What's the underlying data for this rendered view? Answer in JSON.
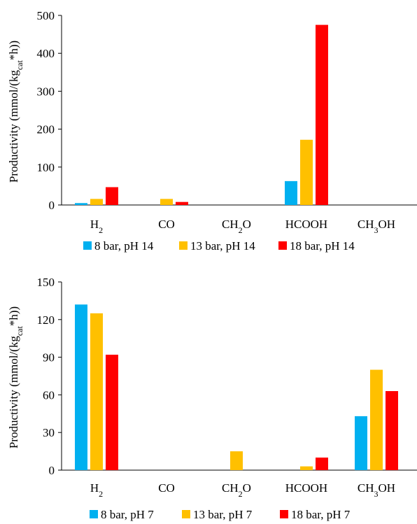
{
  "chart_data": [
    {
      "type": "bar",
      "ylabel": "Productivity (mmol/(kg_cat*h))",
      "ylabel_parts": {
        "main": "Productivity (mmol/(kg",
        "sub": "cat",
        "tail": "*h))"
      },
      "ylim": [
        0,
        500
      ],
      "yticks": [
        "0",
        "100",
        "200",
        "300",
        "400",
        "500"
      ],
      "categories": [
        {
          "base": "H",
          "sub": "2",
          "tail": ""
        },
        {
          "base": "CO",
          "sub": "",
          "tail": ""
        },
        {
          "base": "CH",
          "sub": "2",
          "tail": "O"
        },
        {
          "base": "HCOOH",
          "sub": "",
          "tail": ""
        },
        {
          "base": "CH",
          "sub": "3",
          "tail": "OH"
        }
      ],
      "series": [
        {
          "name": "8 bar, pH 14",
          "color": "#00b0f0",
          "values": [
            5,
            0,
            0,
            63,
            0
          ]
        },
        {
          "name": "13 bar, pH 14",
          "color": "#ffc000",
          "values": [
            16,
            16,
            0,
            172,
            0
          ]
        },
        {
          "name": "18 bar, pH 14",
          "color": "#ff0000",
          "values": [
            47,
            8,
            0,
            475,
            0
          ]
        }
      ],
      "legend": "bottom",
      "grid": false
    },
    {
      "type": "bar",
      "ylabel": "Productivity (mmol/(kg_cat*h))",
      "ylabel_parts": {
        "main": "Productivity (mmol/(kg",
        "sub": "cat",
        "tail": "*h))"
      },
      "ylim": [
        0,
        150
      ],
      "yticks": [
        "0",
        "30",
        "60",
        "90",
        "120",
        "150"
      ],
      "categories": [
        {
          "base": "H",
          "sub": "2",
          "tail": ""
        },
        {
          "base": "CO",
          "sub": "",
          "tail": ""
        },
        {
          "base": "CH",
          "sub": "2",
          "tail": "O"
        },
        {
          "base": "HCOOH",
          "sub": "",
          "tail": ""
        },
        {
          "base": "CH",
          "sub": "3",
          "tail": "OH"
        }
      ],
      "series": [
        {
          "name": "8 bar, pH 7",
          "color": "#00b0f0",
          "values": [
            132,
            0,
            0,
            0,
            43
          ]
        },
        {
          "name": "13 bar, pH 7",
          "color": "#ffc000",
          "values": [
            125,
            0,
            15,
            3,
            80
          ]
        },
        {
          "name": "18 bar, pH 7",
          "color": "#ff0000",
          "values": [
            92,
            0,
            0,
            10,
            63
          ]
        }
      ],
      "legend": "bottom",
      "grid": false
    }
  ]
}
